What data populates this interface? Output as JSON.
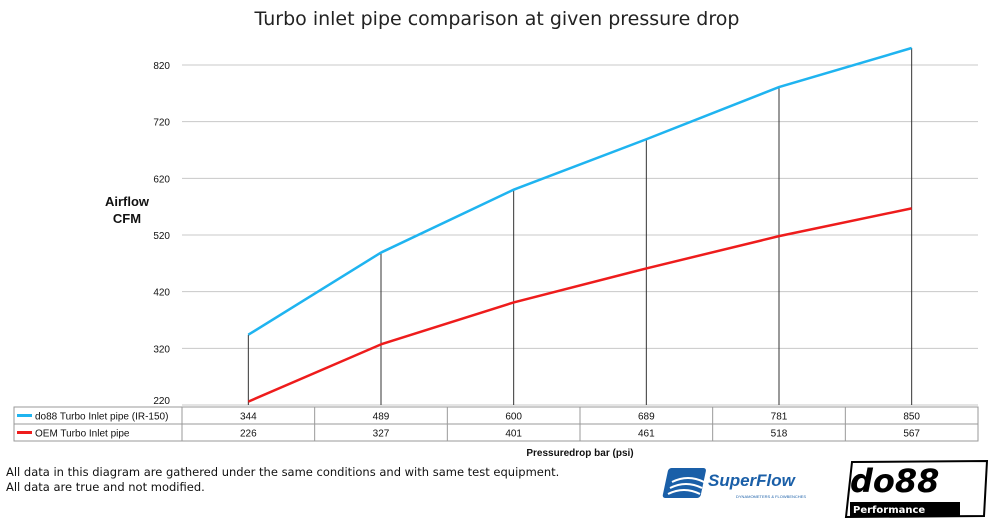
{
  "chart_data": {
    "type": "line",
    "title": "Turbo inlet pipe comparison at given pressure drop",
    "ylabel": [
      "Airflow",
      "CFM"
    ],
    "xlabel": "Pressuredrop bar (psi)",
    "ylim": [
      220,
      850
    ],
    "yticks": [
      220,
      320,
      420,
      520,
      620,
      720,
      820
    ],
    "grid": true,
    "legend": "data-table-left",
    "categories": [
      "",
      "",
      "",
      "",
      "",
      ""
    ],
    "series": [
      {
        "name": "do88 Turbo Inlet pipe (IR-150)",
        "color": "#1fb4f0",
        "values": [
          344,
          489,
          600,
          689,
          781,
          850
        ]
      },
      {
        "name": "OEM Turbo Inlet pipe",
        "color": "#ee1c1c",
        "values": [
          226,
          327,
          401,
          461,
          518,
          567
        ]
      }
    ]
  },
  "notes": [
    "All data in this diagram are gathered under the same conditions and with same test equipment.",
    "All data are true and not modified."
  ],
  "logos": {
    "superflow": "SuperFlow",
    "superflow_sub": "DYNAMOMETERS & FLOWBENCHES",
    "do88": "do88",
    "do88_sub": "Performance"
  }
}
